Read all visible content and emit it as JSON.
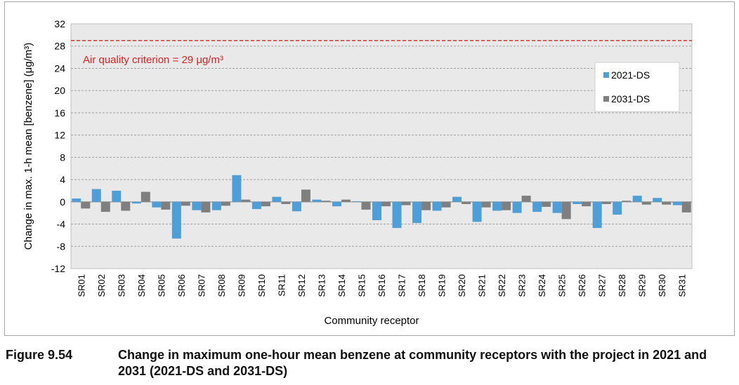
{
  "caption": {
    "number": "Figure 9.54",
    "text": "Change in maximum one-hour mean benzene at community receptors with the project in 2021 and 2031 (2021-DS and 2031-DS)"
  },
  "chart_data": {
    "type": "bar",
    "xlabel": "Community receptor",
    "ylabel": "Change in max. 1-h mean [benzene] (μg/m³)",
    "ylim": [
      -12,
      32
    ],
    "yticks": [
      -12,
      -8,
      -4,
      0,
      4,
      8,
      12,
      16,
      20,
      24,
      28,
      32
    ],
    "grid": "horizontal-dashed",
    "legend_position": "top-right",
    "categories": [
      "SR01",
      "SR02",
      "SR03",
      "SR04",
      "SR05",
      "SR06",
      "SR07",
      "SR08",
      "SR09",
      "SR10",
      "SR11",
      "SR12",
      "SR13",
      "SR14",
      "SR15",
      "SR16",
      "SR17",
      "SR18",
      "SR19",
      "SR20",
      "SR21",
      "SR22",
      "SR23",
      "SR24",
      "SR25",
      "SR26",
      "SR27",
      "SR28",
      "SR29",
      "SR30",
      "SR31"
    ],
    "series": [
      {
        "name": "2021-DS",
        "color": "#4e9fd8",
        "values": [
          0.6,
          2.3,
          2.0,
          -0.3,
          -1.0,
          -6.6,
          -1.5,
          -1.5,
          4.8,
          -1.3,
          0.9,
          -1.7,
          0.4,
          -0.8,
          0.1,
          -3.3,
          -4.7,
          -3.8,
          -1.6,
          0.9,
          -3.6,
          -1.6,
          -2.0,
          -1.8,
          -2.0,
          -0.4,
          -4.7,
          -2.3,
          1.1,
          0.7,
          -0.6
        ]
      },
      {
        "name": "2031-DS",
        "color": "#7f7f7f",
        "values": [
          -1.2,
          -1.8,
          -1.6,
          1.8,
          -1.4,
          -0.7,
          -1.9,
          -0.7,
          0.4,
          -0.8,
          -0.4,
          2.2,
          0.2,
          0.4,
          -1.4,
          -0.8,
          -0.6,
          -1.5,
          -1.0,
          -0.4,
          -1.0,
          -1.5,
          1.1,
          -0.9,
          -3.1,
          -0.8,
          -0.4,
          0.2,
          -0.5,
          -0.5,
          -1.9
        ]
      }
    ],
    "reference_line": {
      "value": 29,
      "color": "#e02020",
      "label": "Air quality criterion = 29 μg/m³"
    }
  }
}
